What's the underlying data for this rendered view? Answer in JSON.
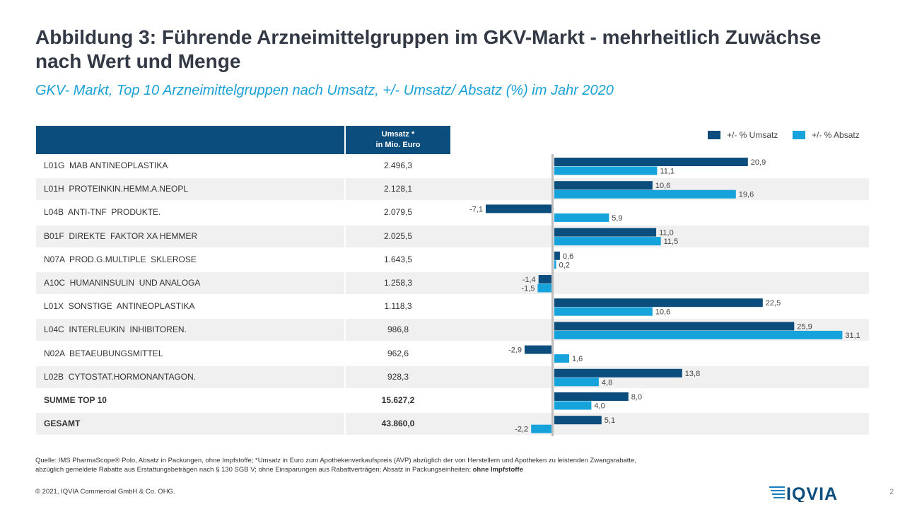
{
  "title": "Abbildung 3: Führende Arzneimittelgruppen im GKV-Markt - mehrheitlich Zuwächse nach Wert und Menge",
  "subtitle": "GKV- Markt, Top 10 Arzneimittelgruppen nach Umsatz, +/- Umsatz/ Absatz (%) im Jahr 2020",
  "table": {
    "header": "Umsatz *\nin Mio. Euro",
    "rows": [
      {
        "label": "L01G  MAB ANTINEOPLASTIKA",
        "value": "2.496,3"
      },
      {
        "label": "L01H  PROTEINKIN.HEMM.A.NEOPL",
        "value": "2.128,1"
      },
      {
        "label": "L04B  ANTI-TNF  PRODUKTE.",
        "value": "2.079,5"
      },
      {
        "label": "B01F  DIREKTE  FAKTOR XA HEMMER",
        "value": "2.025,5"
      },
      {
        "label": "N07A  PROD.G.MULTIPLE  SKLEROSE",
        "value": "1.643,5"
      },
      {
        "label": "A10C  HUMANINSULIN  UND ANALOGA",
        "value": "1.258,3"
      },
      {
        "label": "L01X  SONSTIGE  ANTINEOPLASTIKA",
        "value": "1.118,3"
      },
      {
        "label": "L04C  INTERLEUKIN  INHIBITOREN.",
        "value": "986,8"
      },
      {
        "label": "N02A  BETAEUBUNGSMITTEL",
        "value": "962,6"
      },
      {
        "label": "L02B  CYTOSTAT.HORMONANTAGON.",
        "value": "928,3"
      },
      {
        "label": "SUMME TOP 10",
        "value": "15.627,2"
      },
      {
        "label": "GESAMT",
        "value": "43.860,0"
      }
    ]
  },
  "chart_data": {
    "type": "bar",
    "orientation": "horizontal",
    "categories": [
      "L01G",
      "L01H",
      "L04B",
      "B01F",
      "N07A",
      "A10C",
      "L01X",
      "L04C",
      "N02A",
      "L02B",
      "SUMME TOP 10",
      "GESAMT"
    ],
    "series": [
      {
        "name": "+/- % Umsatz",
        "color": "#0b4d7c",
        "values": [
          20.9,
          10.6,
          -7.1,
          11.0,
          0.6,
          -1.4,
          22.5,
          25.9,
          -2.9,
          13.8,
          8.0,
          5.1
        ],
        "labels": [
          "20,9",
          "10,6",
          "-7,1",
          "11,0",
          "0,6",
          "-1,4",
          "22,5",
          "25,9",
          "-2,9",
          "13,8",
          "8,0",
          "5,1"
        ]
      },
      {
        "name": "+/- % Absatz",
        "color": "#16a3dc",
        "values": [
          11.1,
          19.6,
          5.9,
          11.5,
          0.2,
          -1.5,
          10.6,
          31.1,
          1.6,
          4.8,
          4.0,
          -2.2
        ],
        "labels": [
          "11,1",
          "19,6",
          "5,9",
          "11,5",
          "0,2",
          "-1,5",
          "10,6",
          "31,1",
          "1,6",
          "4,8",
          "4,0",
          "-2,2"
        ]
      }
    ],
    "xlim": [
      -10,
      31.1
    ],
    "legend_position": "top-right"
  },
  "footer": {
    "source_line1": "Quelle: IMS PharmaScope® Polo,  Absatz in Packungen,  ohne Impfstoffe; *Umsatz in Euro  zum Apothekenverkaufspreis (AVP) abzüglich der von Herstellern und Apotheken zu leistenden Zwangsrabatte,",
    "source_line2": "abzüglich gemeldete Rabatte aus Erstattungsbeträgen nach  § 130 SGB V; ohne Einsparungen aus Rabattverträgen; Absatz in Packungseinheiten; ",
    "source_bold": "ohne Impfstoffe",
    "copyright": "© 2021, IQVIA Commercial GmbH & Co. OHG.",
    "logo_text": "IQVIA",
    "page": "2"
  }
}
